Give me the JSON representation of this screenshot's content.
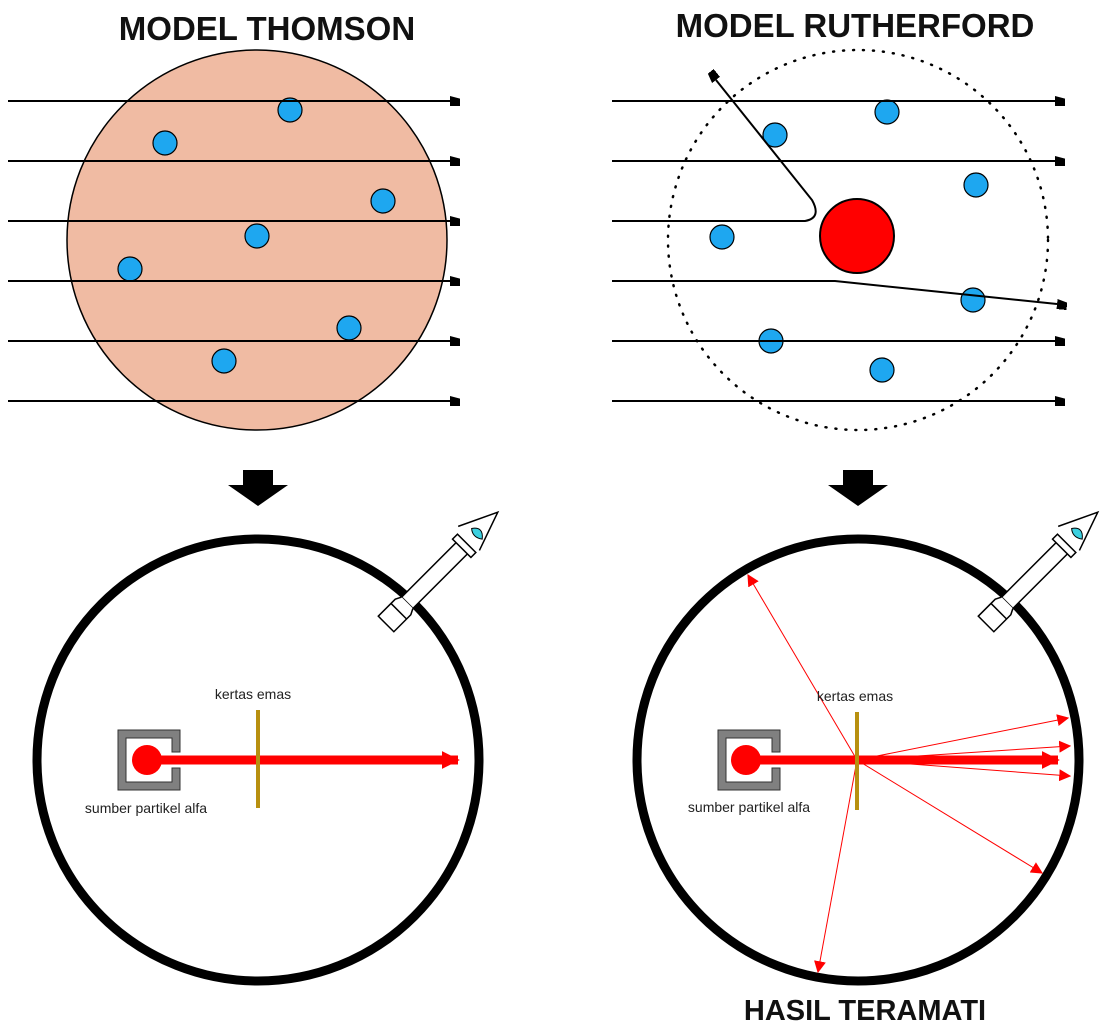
{
  "thomson": {
    "title": "MODEL THOMSON",
    "foil_label": "kertas emas",
    "source_label": "sumber partikel alfa"
  },
  "rutherford": {
    "title": "MODEL RUTHERFORD",
    "foil_label": "kertas emas",
    "source_label": "sumber partikel alfa",
    "result_title": "HASIL TERAMATI"
  },
  "colors": {
    "thomson_sphere": "#f0bba3",
    "electron": "#1ea7f0",
    "nucleus": "#ff0000",
    "beam": "#ff0000",
    "foil": "#b8900f",
    "source_box": "#808080"
  },
  "icons": [
    "microscope-icon",
    "down-arrow-icon"
  ]
}
